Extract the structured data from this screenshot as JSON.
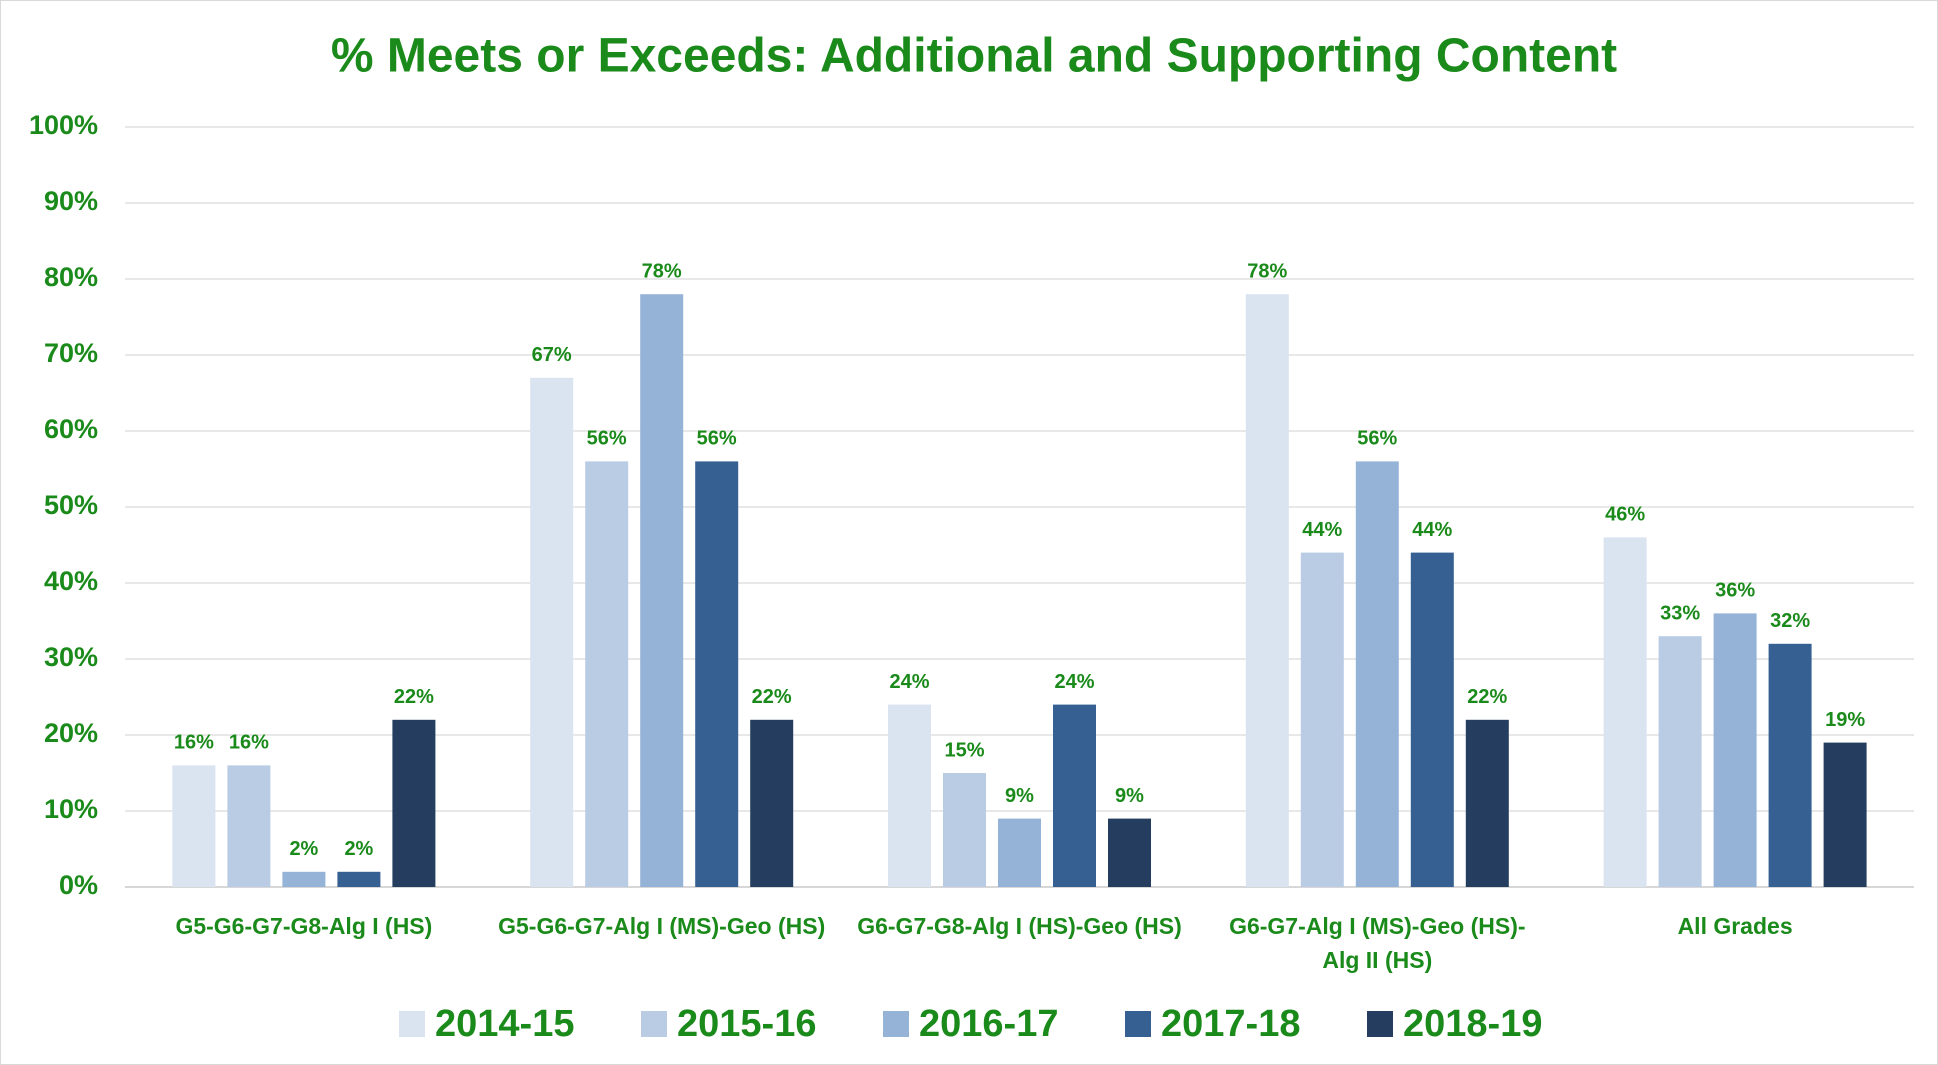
{
  "chart_data": {
    "type": "bar",
    "title": "% Meets or Exceeds: Additional and Supporting Content",
    "categories": [
      "G5-G6-G7-G8-Alg I (HS)",
      "G5-G6-G7-Alg I (MS)-Geo (HS)",
      "G6-G7-G8-Alg I (HS)-Geo (HS)",
      "G6-G7-Alg I (MS)-Geo (HS)-Alg II (HS)",
      "All Grades"
    ],
    "series": [
      {
        "name": "2014-15",
        "color": "#dae3f0",
        "values": [
          16,
          67,
          24,
          78,
          46
        ],
        "value_labels": [
          "16%",
          "67%",
          "24%",
          "78%",
          "46%"
        ]
      },
      {
        "name": "2015-16",
        "color": "#b9cce4",
        "values": [
          16,
          56,
          15,
          44,
          33
        ],
        "value_labels": [
          "16%",
          "56%",
          "15%",
          "44%",
          "33%"
        ]
      },
      {
        "name": "2016-17",
        "color": "#95b3d7",
        "values": [
          2,
          78,
          9,
          56,
          36
        ],
        "value_labels": [
          "2%",
          "78%",
          "9%",
          "56%",
          "36%"
        ]
      },
      {
        "name": "2017-18",
        "color": "#366092",
        "values": [
          2,
          56,
          24,
          44,
          32
        ],
        "value_labels": [
          "2%",
          "56%",
          "24%",
          "44%",
          "32%"
        ]
      },
      {
        "name": "2018-19",
        "color": "#253e5f",
        "values": [
          22,
          22,
          9,
          22,
          19
        ],
        "value_labels": [
          "22%",
          "22%",
          "9%",
          "22%",
          "19%"
        ]
      }
    ],
    "ylim": [
      0,
      100
    ],
    "yticks": [
      {
        "value": 0,
        "label": "0%"
      },
      {
        "value": 10,
        "label": "10%"
      },
      {
        "value": 20,
        "label": "20%"
      },
      {
        "value": 30,
        "label": "30%"
      },
      {
        "value": 40,
        "label": "40%"
      },
      {
        "value": 50,
        "label": "50%"
      },
      {
        "value": 60,
        "label": "60%"
      },
      {
        "value": 70,
        "label": "70%"
      },
      {
        "value": 80,
        "label": "80%"
      },
      {
        "value": 90,
        "label": "90%"
      },
      {
        "value": 100,
        "label": "100%"
      }
    ],
    "grid": true,
    "legend": "bottom"
  }
}
